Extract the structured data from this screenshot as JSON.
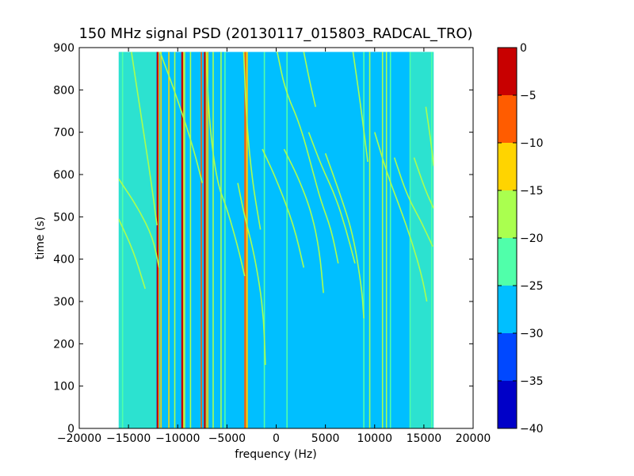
{
  "chart_data": {
    "type": "heatmap",
    "title": "150 MHz signal PSD (20130117_015803_RADCAL_TRO)",
    "xlabel": "frequency (Hz)",
    "ylabel": "time (s)",
    "xlim": [
      -20000,
      20000
    ],
    "ylim": [
      0,
      900
    ],
    "x_ticks": [
      -20000,
      -15000,
      -10000,
      -5000,
      0,
      5000,
      10000,
      15000,
      20000
    ],
    "y_ticks": [
      0,
      100,
      200,
      300,
      400,
      500,
      600,
      700,
      800,
      900
    ],
    "data_extent": {
      "freq": [
        -16000,
        16000
      ],
      "time": [
        0,
        890
      ]
    },
    "background_level_db": -27,
    "colorbar": {
      "range": [
        -40,
        0
      ],
      "ticks": [
        0,
        -5,
        -10,
        -15,
        -20,
        -25,
        -30,
        -35,
        -40
      ],
      "levels": [
        {
          "from": -40,
          "to": -35,
          "color": "#0000c8"
        },
        {
          "from": -35,
          "to": -30,
          "color": "#0048ff"
        },
        {
          "from": -30,
          "to": -25,
          "color": "#00bfff"
        },
        {
          "from": -25,
          "to": -20,
          "color": "#50ffaa"
        },
        {
          "from": -20,
          "to": -15,
          "color": "#aaff4f"
        },
        {
          "from": -15,
          "to": -10,
          "color": "#ffd400"
        },
        {
          "from": -10,
          "to": -5,
          "color": "#ff5c00"
        },
        {
          "from": -5,
          "to": 0,
          "color": "#c80000"
        }
      ]
    },
    "noise_bands": [
      {
        "from": -16000,
        "to": -12200,
        "level_db": -24
      },
      {
        "from": -12200,
        "to": -5200,
        "level_db": -26
      },
      {
        "from": 9000,
        "to": 13600,
        "level_db": -26
      },
      {
        "from": 13600,
        "to": 16000,
        "level_db": -24
      }
    ],
    "steady_lines": [
      {
        "freq": -15600,
        "level_db": -22
      },
      {
        "freq": -12050,
        "level_db": -3
      },
      {
        "freq": -11700,
        "level_db": -12
      },
      {
        "freq": -10900,
        "level_db": -14
      },
      {
        "freq": -10300,
        "level_db": -20
      },
      {
        "freq": -9550,
        "level_db": -3
      },
      {
        "freq": -9300,
        "level_db": -18
      },
      {
        "freq": -8700,
        "level_db": -20
      },
      {
        "freq": -7600,
        "level_db": -10
      },
      {
        "freq": -7250,
        "level_db": -2
      },
      {
        "freq": -6950,
        "level_db": -12
      },
      {
        "freq": -6400,
        "level_db": -20
      },
      {
        "freq": -5600,
        "level_db": -20
      },
      {
        "freq": -5200,
        "level_db": -22
      },
      {
        "freq": -3150,
        "level_db": -8
      },
      {
        "freq": -2950,
        "level_db": -14
      },
      {
        "freq": -1200,
        "level_db": -22
      },
      {
        "freq": 1100,
        "level_db": -22
      },
      {
        "freq": 8900,
        "level_db": -22
      },
      {
        "freq": 9500,
        "level_db": -20
      },
      {
        "freq": 10800,
        "level_db": -18
      },
      {
        "freq": 11200,
        "level_db": -20
      },
      {
        "freq": 11600,
        "level_db": -22
      },
      {
        "freq": 13600,
        "level_db": -22
      },
      {
        "freq": 15800,
        "level_db": -22
      }
    ],
    "drifting_tracks": [
      {
        "level_db": -18,
        "points": [
          [
            -16000,
            590
          ],
          [
            -14000,
            520
          ],
          [
            -12500,
            450
          ],
          [
            -11900,
            380
          ]
        ]
      },
      {
        "level_db": -20,
        "points": [
          [
            -16000,
            495
          ],
          [
            -14500,
            420
          ],
          [
            -13300,
            330
          ]
        ]
      },
      {
        "level_db": -20,
        "points": [
          [
            -14700,
            890
          ],
          [
            -13800,
            750
          ],
          [
            -12800,
            600
          ],
          [
            -12100,
            480
          ]
        ]
      },
      {
        "level_db": -18,
        "points": [
          [
            -11800,
            890
          ],
          [
            -10200,
            790
          ],
          [
            -8500,
            670
          ],
          [
            -7500,
            580
          ]
        ]
      },
      {
        "level_db": -18,
        "points": [
          [
            -7100,
            890
          ],
          [
            -6800,
            720
          ],
          [
            -6000,
            580
          ],
          [
            -5000,
            520
          ],
          [
            -3900,
            430
          ],
          [
            -3200,
            360
          ]
        ]
      },
      {
        "level_db": -20,
        "points": [
          [
            -3300,
            890
          ],
          [
            -3000,
            720
          ],
          [
            -2400,
            580
          ],
          [
            -1600,
            470
          ]
        ]
      },
      {
        "level_db": -18,
        "points": [
          [
            -3900,
            580
          ],
          [
            -3200,
            500
          ],
          [
            -2200,
            410
          ],
          [
            -1300,
            280
          ],
          [
            -1100,
            150
          ]
        ]
      },
      {
        "level_db": -18,
        "points": [
          [
            100,
            890
          ],
          [
            900,
            800
          ],
          [
            2400,
            720
          ],
          [
            3700,
            610
          ],
          [
            4500,
            540
          ],
          [
            5600,
            470
          ],
          [
            6300,
            390
          ]
        ]
      },
      {
        "level_db": -20,
        "points": [
          [
            -1400,
            660
          ],
          [
            0,
            590
          ],
          [
            1800,
            480
          ],
          [
            2800,
            380
          ]
        ]
      },
      {
        "level_db": -20,
        "points": [
          [
            800,
            660
          ],
          [
            2300,
            590
          ],
          [
            3600,
            510
          ],
          [
            4400,
            420
          ],
          [
            4800,
            320
          ]
        ]
      },
      {
        "level_db": -20,
        "points": [
          [
            3300,
            700
          ],
          [
            4600,
            620
          ],
          [
            6000,
            550
          ],
          [
            7100,
            470
          ],
          [
            8000,
            390
          ]
        ]
      },
      {
        "level_db": -18,
        "points": [
          [
            5000,
            650
          ],
          [
            6400,
            560
          ],
          [
            7800,
            460
          ],
          [
            8700,
            330
          ],
          [
            8900,
            260
          ]
        ]
      },
      {
        "level_db": -20,
        "points": [
          [
            7800,
            890
          ],
          [
            8600,
            760
          ],
          [
            9300,
            630
          ]
        ]
      },
      {
        "level_db": -20,
        "points": [
          [
            2800,
            890
          ],
          [
            3400,
            820
          ],
          [
            4000,
            760
          ]
        ]
      },
      {
        "level_db": -20,
        "points": [
          [
            10000,
            700
          ],
          [
            11300,
            600
          ],
          [
            12600,
            520
          ],
          [
            13800,
            440
          ],
          [
            14800,
            360
          ],
          [
            15300,
            300
          ]
        ]
      },
      {
        "level_db": -18,
        "points": [
          [
            12000,
            640
          ],
          [
            13300,
            550
          ],
          [
            14700,
            490
          ],
          [
            15900,
            430
          ]
        ]
      },
      {
        "level_db": -20,
        "points": [
          [
            14000,
            640
          ],
          [
            15200,
            560
          ],
          [
            16000,
            520
          ]
        ]
      },
      {
        "level_db": -18,
        "points": [
          [
            15200,
            760
          ],
          [
            15700,
            680
          ],
          [
            16000,
            620
          ]
        ]
      }
    ]
  }
}
